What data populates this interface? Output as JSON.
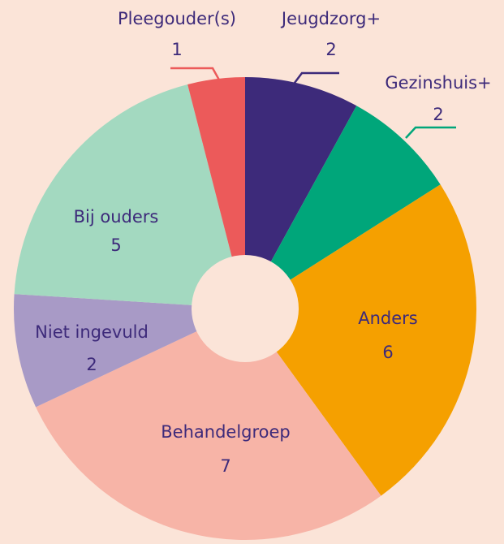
{
  "chart_data": {
    "type": "donut",
    "categories": [
      "Jeugdzorg+",
      "Gezinshuis+",
      "Anders",
      "Behandelgroep",
      "Niet ingevuld",
      "Bij ouders",
      "Pleegouder(s)"
    ],
    "values": [
      2,
      2,
      6,
      7,
      2,
      5,
      1
    ],
    "colors": [
      "#3d2a7a",
      "#00a67a",
      "#f5a000",
      "#f7b4a7",
      "#a89ac6",
      "#a3d9c0",
      "#ec5a5a"
    ]
  }
}
